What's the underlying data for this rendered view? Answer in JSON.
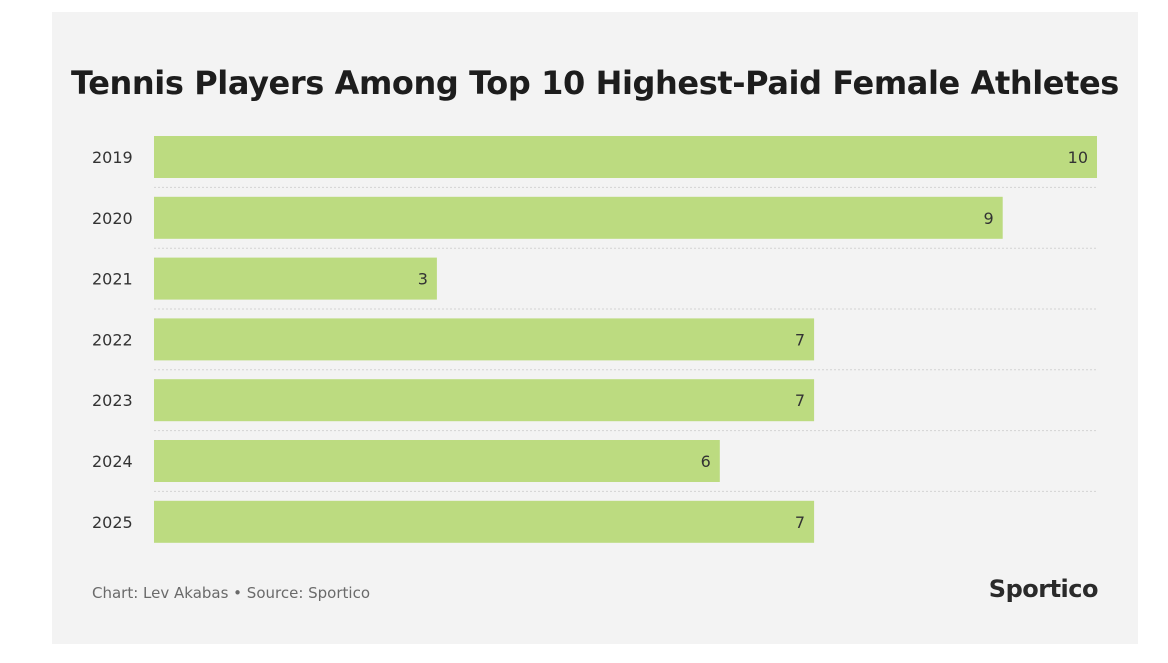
{
  "chart_data": {
    "type": "bar",
    "orientation": "horizontal",
    "title": "Tennis Players Among Top 10 Highest-Paid Female Athletes",
    "categories": [
      "2019",
      "2020",
      "2021",
      "2022",
      "2023",
      "2024",
      "2025"
    ],
    "values": [
      10,
      9,
      3,
      7,
      7,
      6,
      7
    ],
    "xlabel": "",
    "ylabel": "",
    "xlim": [
      0,
      10
    ],
    "grid": false,
    "bar_color": "#bcdb80",
    "separator_color": "#d3d3d3"
  },
  "footer": {
    "credit": "Chart: Lev Akabas • Source: Sportico",
    "brand": "Sportico"
  }
}
